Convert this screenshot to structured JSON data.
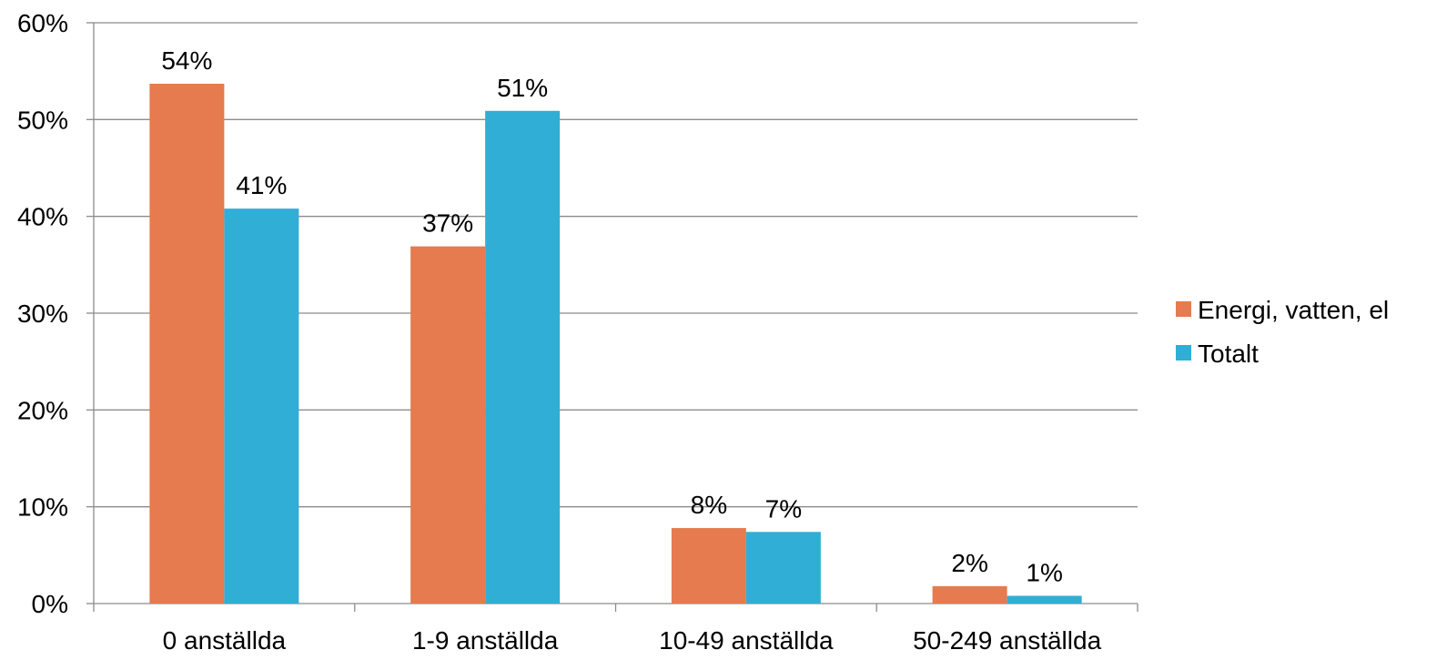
{
  "chart_data": {
    "type": "bar",
    "categories": [
      "0 anställda",
      "1-9 anställda",
      "10-49 anställda",
      "50-249 anställda"
    ],
    "series": [
      {
        "name": "Energi, vatten, el",
        "color": "#E57B4E",
        "values": [
          0.537,
          0.369,
          0.078,
          0.018
        ],
        "labels": [
          "54%",
          "37%",
          "8%",
          "2%"
        ]
      },
      {
        "name": "Totalt",
        "color": "#31AED5",
        "values": [
          0.408,
          0.509,
          0.074,
          0.008
        ],
        "labels": [
          "41%",
          "51%",
          "7%",
          "1%"
        ]
      }
    ],
    "ylim": [
      0,
      0.6
    ],
    "y_ticks": [
      0,
      0.1,
      0.2,
      0.3,
      0.4,
      0.5,
      0.6
    ],
    "y_tick_labels": [
      "0%",
      "10%",
      "20%",
      "30%",
      "40%",
      "50%",
      "60%"
    ],
    "grid": true,
    "legend_position": "right",
    "title": "",
    "xlabel": "",
    "ylabel": ""
  }
}
